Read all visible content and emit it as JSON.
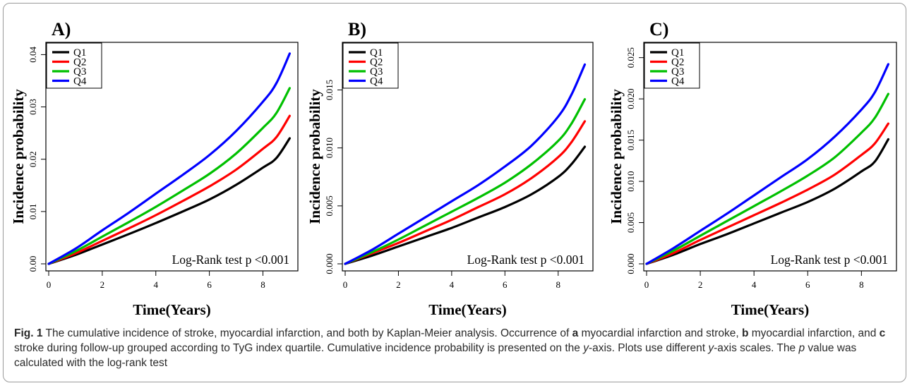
{
  "chart_data": [
    {
      "type": "line",
      "panel_label": "A)",
      "xlabel": "Time(Years)",
      "ylabel": "Incidence probability",
      "xlim": [
        0,
        9.2
      ],
      "ylim": [
        0,
        0.041
      ],
      "xticks": [
        "0",
        "2",
        "4",
        "6",
        "8"
      ],
      "yticks": [
        "0.00",
        "0.01",
        "0.02",
        "0.03",
        "0.04"
      ],
      "annotation": "Log-Rank test p <0.001",
      "legend": "top-left",
      "series": [
        {
          "name": "Q1",
          "color": "#000000",
          "x": [
            0,
            1,
            2,
            3,
            4,
            5,
            6,
            7,
            8,
            8.5,
            9
          ],
          "y": [
            0,
            0.0017,
            0.0037,
            0.0057,
            0.0078,
            0.01,
            0.0123,
            0.0151,
            0.0184,
            0.0202,
            0.024
          ]
        },
        {
          "name": "Q2",
          "color": "#ff0000",
          "x": [
            0,
            1,
            2,
            3,
            4,
            5,
            6,
            7,
            8,
            8.5,
            9
          ],
          "y": [
            0,
            0.002,
            0.0044,
            0.0068,
            0.0093,
            0.012,
            0.0148,
            0.018,
            0.022,
            0.0242,
            0.0283
          ]
        },
        {
          "name": "Q3",
          "color": "#00c000",
          "x": [
            0,
            1,
            2,
            3,
            4,
            5,
            6,
            7,
            8,
            8.5,
            9
          ],
          "y": [
            0,
            0.0024,
            0.0052,
            0.008,
            0.0109,
            0.014,
            0.0172,
            0.0211,
            0.026,
            0.0288,
            0.0336
          ]
        },
        {
          "name": "Q4",
          "color": "#0000ff",
          "x": [
            0,
            1,
            2,
            3,
            4,
            5,
            6,
            7,
            8,
            8.5,
            9
          ],
          "y": [
            0,
            0.0029,
            0.0064,
            0.0098,
            0.0134,
            0.017,
            0.0208,
            0.0254,
            0.031,
            0.0345,
            0.0402
          ]
        }
      ]
    },
    {
      "type": "line",
      "panel_label": "B)",
      "xlabel": "Time(Years)",
      "ylabel": "Incidence probability",
      "xlim": [
        0,
        9.2
      ],
      "ylim": [
        0,
        0.0185
      ],
      "xticks": [
        "0",
        "2",
        "4",
        "6",
        "8"
      ],
      "yticks": [
        "0.000",
        "0.005",
        "0.010",
        "0.015"
      ],
      "annotation": "Log-Rank test p <0.001",
      "legend": "top-left",
      "series": [
        {
          "name": "Q1",
          "color": "#000000",
          "x": [
            0,
            1,
            2,
            3,
            4,
            5,
            6,
            7,
            8,
            8.5,
            9
          ],
          "y": [
            0,
            0.0007,
            0.0015,
            0.0023,
            0.0031,
            0.004,
            0.0049,
            0.006,
            0.0075,
            0.0086,
            0.0101
          ]
        },
        {
          "name": "Q2",
          "color": "#ff0000",
          "x": [
            0,
            1,
            2,
            3,
            4,
            5,
            6,
            7,
            8,
            8.5,
            9
          ],
          "y": [
            0,
            0.0009,
            0.0018,
            0.0028,
            0.0038,
            0.0049,
            0.006,
            0.0074,
            0.0092,
            0.0105,
            0.0123
          ]
        },
        {
          "name": "Q3",
          "color": "#00c000",
          "x": [
            0,
            1,
            2,
            3,
            4,
            5,
            6,
            7,
            8,
            8.5,
            9
          ],
          "y": [
            0,
            0.001,
            0.0021,
            0.0033,
            0.0045,
            0.0057,
            0.007,
            0.0086,
            0.0106,
            0.0121,
            0.0142
          ]
        },
        {
          "name": "Q4",
          "color": "#0000ff",
          "x": [
            0,
            1,
            2,
            3,
            4,
            5,
            6,
            7,
            8,
            8.5,
            9
          ],
          "y": [
            0,
            0.0012,
            0.0026,
            0.004,
            0.0054,
            0.0068,
            0.0084,
            0.0102,
            0.0127,
            0.0146,
            0.0172
          ]
        }
      ]
    },
    {
      "type": "line",
      "panel_label": "C)",
      "xlabel": "Time(Years)",
      "ylabel": "Incidence probability",
      "xlim": [
        0,
        9.2
      ],
      "ylim": [
        0,
        0.026
      ],
      "xticks": [
        "0",
        "2",
        "4",
        "6",
        "8"
      ],
      "yticks": [
        "0.000",
        "0.005",
        "0.010",
        "0.015",
        "0.020",
        "0.025"
      ],
      "annotation": "Log-Rank test p <0.001",
      "legend": "top-left",
      "series": [
        {
          "name": "Q1",
          "color": "#000000",
          "x": [
            0,
            1,
            2,
            3,
            4,
            5,
            6,
            7,
            8,
            8.5,
            9
          ],
          "y": [
            0,
            0.0011,
            0.0024,
            0.0036,
            0.0049,
            0.0062,
            0.0075,
            0.0091,
            0.0112,
            0.0124,
            0.0151
          ]
        },
        {
          "name": "Q2",
          "color": "#ff0000",
          "x": [
            0,
            1,
            2,
            3,
            4,
            5,
            6,
            7,
            8,
            8.5,
            9
          ],
          "y": [
            0,
            0.0013,
            0.0029,
            0.0044,
            0.0059,
            0.0074,
            0.009,
            0.0108,
            0.0132,
            0.0146,
            0.017
          ]
        },
        {
          "name": "Q3",
          "color": "#00c000",
          "x": [
            0,
            1,
            2,
            3,
            4,
            5,
            6,
            7,
            8,
            8.5,
            9
          ],
          "y": [
            0,
            0.0016,
            0.0034,
            0.0052,
            0.007,
            0.0088,
            0.0107,
            0.0129,
            0.0159,
            0.0177,
            0.0206
          ]
        },
        {
          "name": "Q4",
          "color": "#0000ff",
          "x": [
            0,
            1,
            2,
            3,
            4,
            5,
            6,
            7,
            8,
            8.5,
            9
          ],
          "y": [
            0,
            0.0019,
            0.004,
            0.0061,
            0.0083,
            0.0105,
            0.0127,
            0.0154,
            0.0187,
            0.0208,
            0.0242
          ]
        }
      ]
    }
  ],
  "caption": {
    "fig_label": "Fig. 1",
    "line1": " The cumulative incidence of stroke, myocardial infarction, and both by Kaplan-Meier analysis. Occurrence of ",
    "a": "a",
    "t_a": " myocardial infarction and stroke, ",
    "b": "b",
    "t_b": " myocardial infarction, and ",
    "c": "c",
    "t_c": " stroke during follow-up grouped according to TyG index quartile. Cumulative incidence probability is presented on the ",
    "y_axis": "y",
    "t_axis": "-axis. Plots use different ",
    "y_axis2": "y",
    "t_axis2": "-axis scales. The ",
    "p": "p",
    "t_end": " value was calculated with the log-rank test"
  }
}
